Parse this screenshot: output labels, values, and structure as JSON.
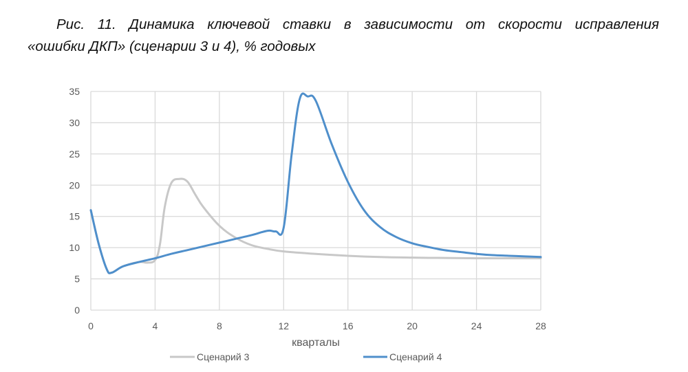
{
  "caption": {
    "line1": "Рис. 11. Динамика ключевой ставки в зависимости от скорости исправления",
    "line2": "«ошибки ДКП» (сценарии 3 и 4), % годовых"
  },
  "colors": {
    "scenario3": "#c8c8c8",
    "scenario4": "#4f8fcb",
    "grid": "#d9d9d9",
    "text": "#595959"
  },
  "chart_data": {
    "type": "line",
    "title": "Рис. 11. Динамика ключевой ставки в зависимости от скорости исправления «ошибки ДКП» (сценарии 3 и 4), % годовых",
    "xlabel": "кварталы",
    "ylabel": "",
    "xlim": [
      0,
      28
    ],
    "ylim": [
      0,
      35
    ],
    "xticks": [
      0,
      4,
      8,
      12,
      16,
      20,
      24,
      28
    ],
    "yticks": [
      0,
      5,
      10,
      15,
      20,
      25,
      30,
      35
    ],
    "grid": true,
    "legend_position": "bottom",
    "series": [
      {
        "name": "Сценарий 3",
        "color": "#c8c8c8",
        "x": [
          0,
          0.5,
          1,
          1.3,
          2,
          3,
          3.5,
          4,
          4.3,
          4.6,
          5,
          5.5,
          6,
          6.5,
          7,
          8,
          9,
          10,
          11,
          12,
          14,
          16,
          18,
          20,
          22,
          24,
          26,
          28
        ],
        "values": [
          16,
          10.5,
          6.5,
          6.0,
          7.0,
          7.7,
          7.6,
          8.0,
          10.5,
          16.5,
          20.3,
          21.0,
          20.6,
          18.5,
          16.5,
          13.5,
          11.6,
          10.4,
          9.8,
          9.4,
          9.0,
          8.7,
          8.5,
          8.4,
          8.35,
          8.3,
          8.3,
          8.3
        ]
      },
      {
        "name": "Сценарий 4",
        "color": "#4f8fcb",
        "x": [
          0,
          0.5,
          1,
          1.3,
          2,
          3,
          4,
          5,
          6,
          7,
          8,
          9,
          10,
          11,
          11.5,
          12,
          12.5,
          13,
          13.5,
          14,
          15,
          16,
          17,
          18,
          19,
          20,
          21,
          22,
          23,
          24,
          25,
          26,
          27,
          28
        ],
        "values": [
          16,
          10.5,
          6.5,
          6.0,
          7.0,
          7.7,
          8.3,
          9.0,
          9.6,
          10.2,
          10.8,
          11.4,
          12.0,
          12.7,
          12.6,
          13.2,
          25,
          33.8,
          34.2,
          33.5,
          26.5,
          20.5,
          16.0,
          13.3,
          11.7,
          10.7,
          10.1,
          9.6,
          9.3,
          9.0,
          8.8,
          8.7,
          8.6,
          8.5
        ]
      }
    ]
  },
  "legend": {
    "items": [
      {
        "label": "Сценарий 3"
      },
      {
        "label": "Сценарий 4"
      }
    ]
  },
  "axis": {
    "x_title": "кварталы"
  }
}
